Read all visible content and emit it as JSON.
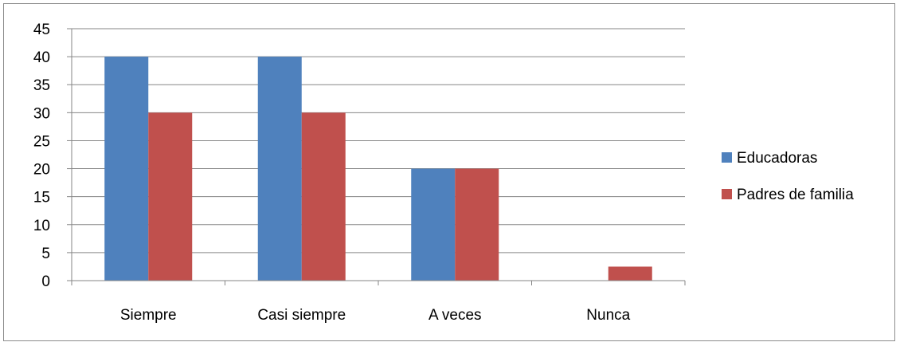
{
  "chart_data": {
    "type": "bar",
    "categories": [
      "Siempre",
      "Casi siempre",
      "A veces",
      "Nunca"
    ],
    "series": [
      {
        "name": "Educadoras",
        "color": "#4f81bd",
        "values": [
          40,
          40,
          20,
          0
        ]
      },
      {
        "name": "Padres de familia",
        "color": "#c0504d",
        "values": [
          30,
          30,
          20,
          2.5
        ]
      }
    ],
    "ylim": [
      0,
      45
    ],
    "yticks": [
      "0",
      "5",
      "10",
      "15",
      "20",
      "25",
      "30",
      "35",
      "40",
      "45"
    ],
    "grid": true,
    "legend_position": "right",
    "title": "",
    "xlabel": "",
    "ylabel": ""
  }
}
